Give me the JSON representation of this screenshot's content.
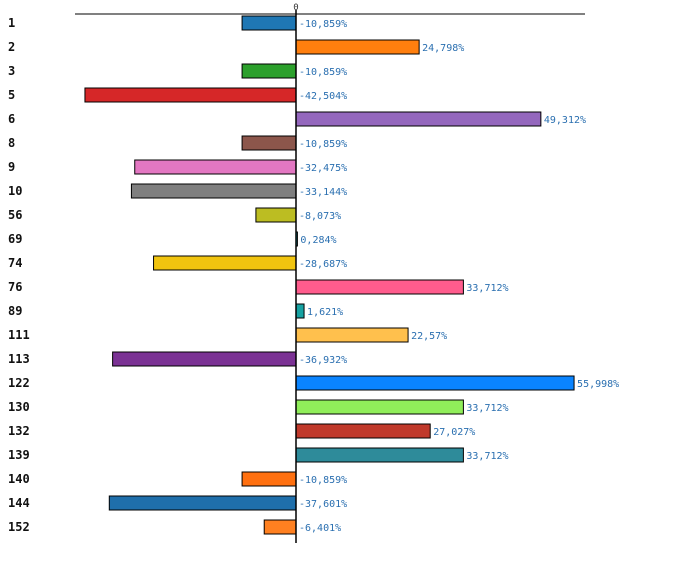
{
  "chart_data": {
    "type": "bar",
    "orientation": "horizontal",
    "title": "",
    "xlabel": "",
    "ylabel": "",
    "zero_tick_label": "0",
    "categories": [
      "1",
      "2",
      "3",
      "5",
      "6",
      "8",
      "9",
      "10",
      "56",
      "69",
      "74",
      "76",
      "89",
      "111",
      "113",
      "122",
      "130",
      "132",
      "139",
      "140",
      "144",
      "152"
    ],
    "values": [
      -10.859,
      24.798,
      -10.859,
      -42.504,
      49.312,
      -10.859,
      -32.475,
      -33.144,
      -8.073,
      0.284,
      -28.687,
      33.712,
      1.621,
      22.57,
      -36.932,
      55.998,
      33.712,
      27.027,
      33.712,
      -10.859,
      -37.601,
      -6.401
    ],
    "value_labels": [
      "-10,859%",
      "24,798%",
      "-10,859%",
      "-42,504%",
      "49,312%",
      "-10,859%",
      "-32,475%",
      "-33,144%",
      "-8,073%",
      "0,284%",
      "-28,687%",
      "33,712%",
      "1,621%",
      "22,57%",
      "-36,932%",
      "55,998%",
      "33,712%",
      "27,027%",
      "33,712%",
      "-10,859%",
      "-37,601%",
      "-6,401%"
    ],
    "colors": [
      "#1f77b4",
      "#ff7f0e",
      "#2ca02c",
      "#d62728",
      "#9467bd",
      "#8c564b",
      "#e377c2",
      "#7f7f7f",
      "#bcbd22",
      "#17becf",
      "#f1c40f",
      "#ff5c8d",
      "#17a2a2",
      "#ffc04d",
      "#7b3294",
      "#0a84ff",
      "#90ee5a",
      "#c0392b",
      "#2e8b9a",
      "#ff7010",
      "#1f6fab",
      "#ff8020"
    ],
    "xlim": [
      -43.5,
      57.8
    ],
    "grid": false,
    "legend": "none"
  }
}
